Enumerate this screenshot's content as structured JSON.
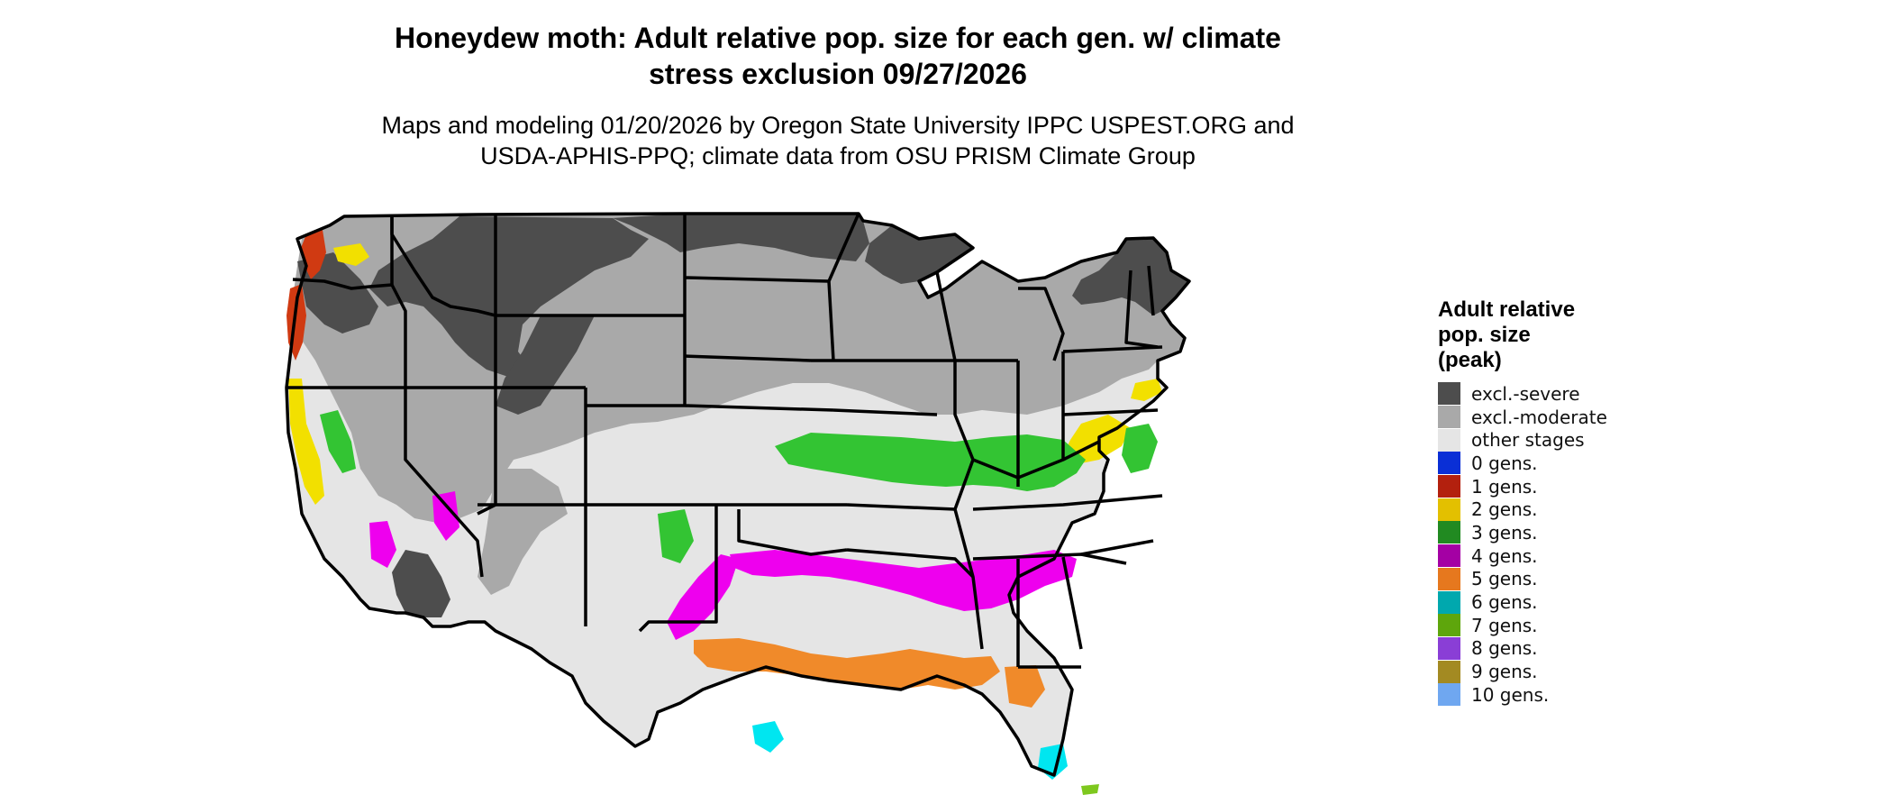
{
  "header": {
    "title_line1": "Honeydew moth: Adult relative pop. size for each gen. w/ climate",
    "title_line2": "stress exclusion 09/27/2026",
    "subtitle_line1": "Maps and modeling 01/20/2026 by Oregon State University IPPC USPEST.ORG and",
    "subtitle_line2": "USDA-APHIS-PPQ; climate data from OSU PRISM Climate Group"
  },
  "legend": {
    "title_line1": "Adult relative",
    "title_line2": "pop. size",
    "title_line3": "(peak)",
    "items": [
      {
        "label": "excl.-severe",
        "color": "#4d4d4d"
      },
      {
        "label": "excl.-moderate",
        "color": "#a9a9a9"
      },
      {
        "label": "other stages",
        "color": "#e5e5e5"
      },
      {
        "label": "0 gens.",
        "color": "#0a2fd6"
      },
      {
        "label": "1 gens.",
        "color": "#b3200e"
      },
      {
        "label": "2 gens.",
        "color": "#e3c000"
      },
      {
        "label": "3 gens.",
        "color": "#218a21"
      },
      {
        "label": "4 gens.",
        "color": "#a400a4"
      },
      {
        "label": "5 gens.",
        "color": "#e6781e"
      },
      {
        "label": "6 gens.",
        "color": "#00a8ae"
      },
      {
        "label": "7 gens.",
        "color": "#5ea60c"
      },
      {
        "label": "8 gens.",
        "color": "#8a3ed6"
      },
      {
        "label": "9 gens.",
        "color": "#a38a22"
      },
      {
        "label": "10 gens.",
        "color": "#6fa7f0"
      }
    ]
  },
  "map": {
    "colors": {
      "severe": "#4d4d4d",
      "moderate": "#a9a9a9",
      "other": "#e5e5e5",
      "gen1": "#d03a12",
      "gen2": "#f2e000",
      "gen3": "#33c433",
      "gen4": "#ee00ee",
      "gen5": "#f08a2a",
      "gen6": "#00e6f0",
      "gen7": "#7ec81e",
      "border": "#000000"
    }
  }
}
